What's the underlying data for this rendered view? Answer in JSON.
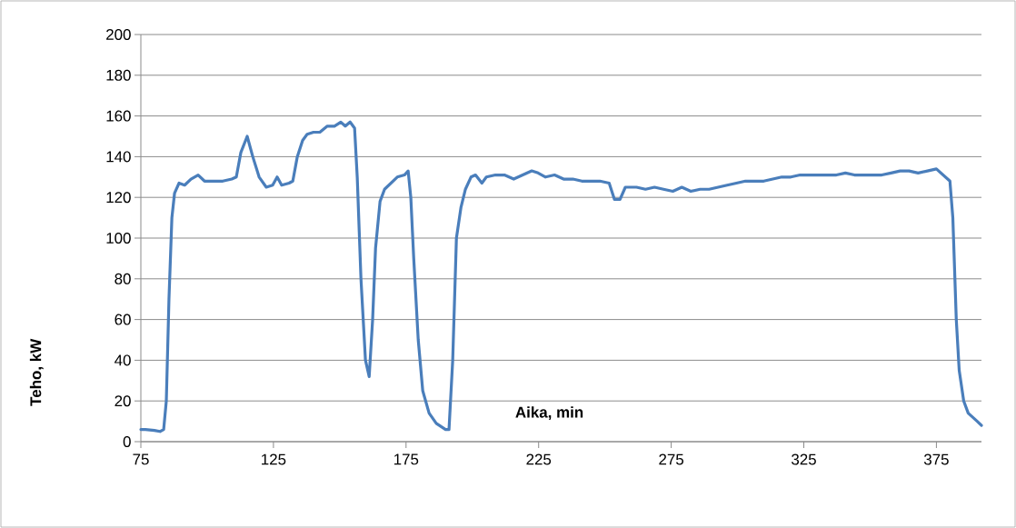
{
  "chart_data": {
    "type": "line",
    "xlabel": "Aika, min",
    "ylabel": "Teho, kW",
    "xlim": [
      75,
      392
    ],
    "ylim": [
      0,
      200
    ],
    "xticks": [
      75,
      125,
      175,
      225,
      275,
      325,
      375
    ],
    "yticks": [
      0,
      20,
      40,
      60,
      80,
      100,
      120,
      140,
      160,
      180,
      200
    ],
    "grid": "y",
    "x": [
      75,
      76.7,
      80.1,
      82.2,
      83.6,
      84.6,
      85.6,
      86.7,
      87.7,
      89.4,
      91.5,
      93.9,
      96.6,
      99,
      102.4,
      105.9,
      109.3,
      111,
      112.7,
      115.1,
      117.2,
      119.6,
      122.3,
      124.7,
      126.4,
      128.1,
      130.9,
      132.3,
      134,
      136,
      137.7,
      140.1,
      142.5,
      145.3,
      148,
      150.4,
      152.1,
      153.9,
      155.6,
      156.6,
      158,
      159.7,
      161.1,
      162.4,
      163.5,
      165.2,
      166.9,
      169.3,
      171.7,
      174.4,
      175.8,
      176.8,
      177.9,
      179.6,
      181.3,
      183.7,
      186.4,
      189.9,
      191.2,
      192.6,
      194,
      195.7,
      197.4,
      199.5,
      201.2,
      203.6,
      205.3,
      208.7,
      212.1,
      215.6,
      219,
      222.4,
      224.8,
      227.6,
      231,
      234.4,
      237.9,
      241.3,
      244.7,
      248.1,
      251.6,
      253.6,
      255.7,
      257.7,
      261.9,
      265.3,
      268.7,
      272.1,
      275.6,
      279,
      282.4,
      285.9,
      289.3,
      292.7,
      296.1,
      299.6,
      303,
      306.4,
      309.9,
      313.3,
      316.7,
      320.1,
      323.6,
      327,
      330.4,
      333.9,
      337.3,
      340.7,
      344.1,
      347.6,
      351,
      354.4,
      357.9,
      361.3,
      364.7,
      368.1,
      371.6,
      375,
      376.7,
      378.4,
      380.1,
      381.2,
      382.5,
      383.6,
      385.3,
      387,
      390.4,
      392
    ],
    "series": [
      {
        "color": "#4a7ebb",
        "values": [
          6,
          6,
          5.5,
          5,
          6,
          20,
          70,
          110,
          122,
          127,
          126,
          129,
          131,
          128,
          128,
          128,
          129,
          130,
          142,
          150,
          140,
          130,
          125,
          126,
          130,
          126,
          127,
          128,
          140,
          148,
          151,
          152,
          152,
          155,
          155,
          157,
          155,
          157,
          154,
          130,
          80,
          40,
          32,
          60,
          95,
          118,
          124,
          127,
          130,
          131,
          133,
          120,
          90,
          50,
          25,
          14,
          9,
          6,
          6,
          40,
          100,
          115,
          124,
          130,
          131,
          127,
          130,
          131,
          131,
          129,
          131,
          133,
          132,
          130,
          131,
          129,
          129,
          128,
          128,
          128,
          127,
          119,
          119,
          125,
          125,
          124,
          125,
          124,
          123,
          125,
          123,
          124,
          124,
          125,
          126,
          127,
          128,
          128,
          128,
          129,
          130,
          130,
          131,
          131,
          131,
          131,
          131,
          132,
          131,
          131,
          131,
          131,
          132,
          133,
          133,
          132,
          133,
          134,
          132,
          130,
          128,
          110,
          60,
          35,
          20,
          14,
          10,
          8
        ]
      }
    ]
  }
}
